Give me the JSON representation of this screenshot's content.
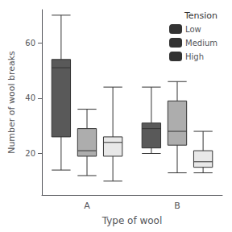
{
  "chart_data": {
    "type": "boxplot",
    "xlabel": "Type of wool",
    "ylabel": "Number of wool breaks",
    "categories": [
      "A",
      "B"
    ],
    "series": [
      {
        "name": "Low",
        "color": "#595959",
        "values": [
          [
            14,
            26,
            51,
            54,
            70
          ],
          [
            20,
            22,
            29,
            31,
            44
          ]
        ]
      },
      {
        "name": "Medium",
        "color": "#adadad",
        "values": [
          [
            12,
            19,
            21,
            29,
            36
          ],
          [
            13,
            23,
            28,
            39,
            46
          ]
        ]
      },
      {
        "name": "High",
        "color": "#e8e8e8",
        "values": [
          [
            10,
            19,
            24,
            26,
            44
          ],
          [
            13,
            15,
            17,
            21,
            28
          ]
        ]
      }
    ],
    "legend_title": "Tension",
    "legend": "upper right",
    "ylim": [
      5,
      72
    ],
    "yticks": [
      20,
      40,
      60
    ],
    "grid": false
  }
}
